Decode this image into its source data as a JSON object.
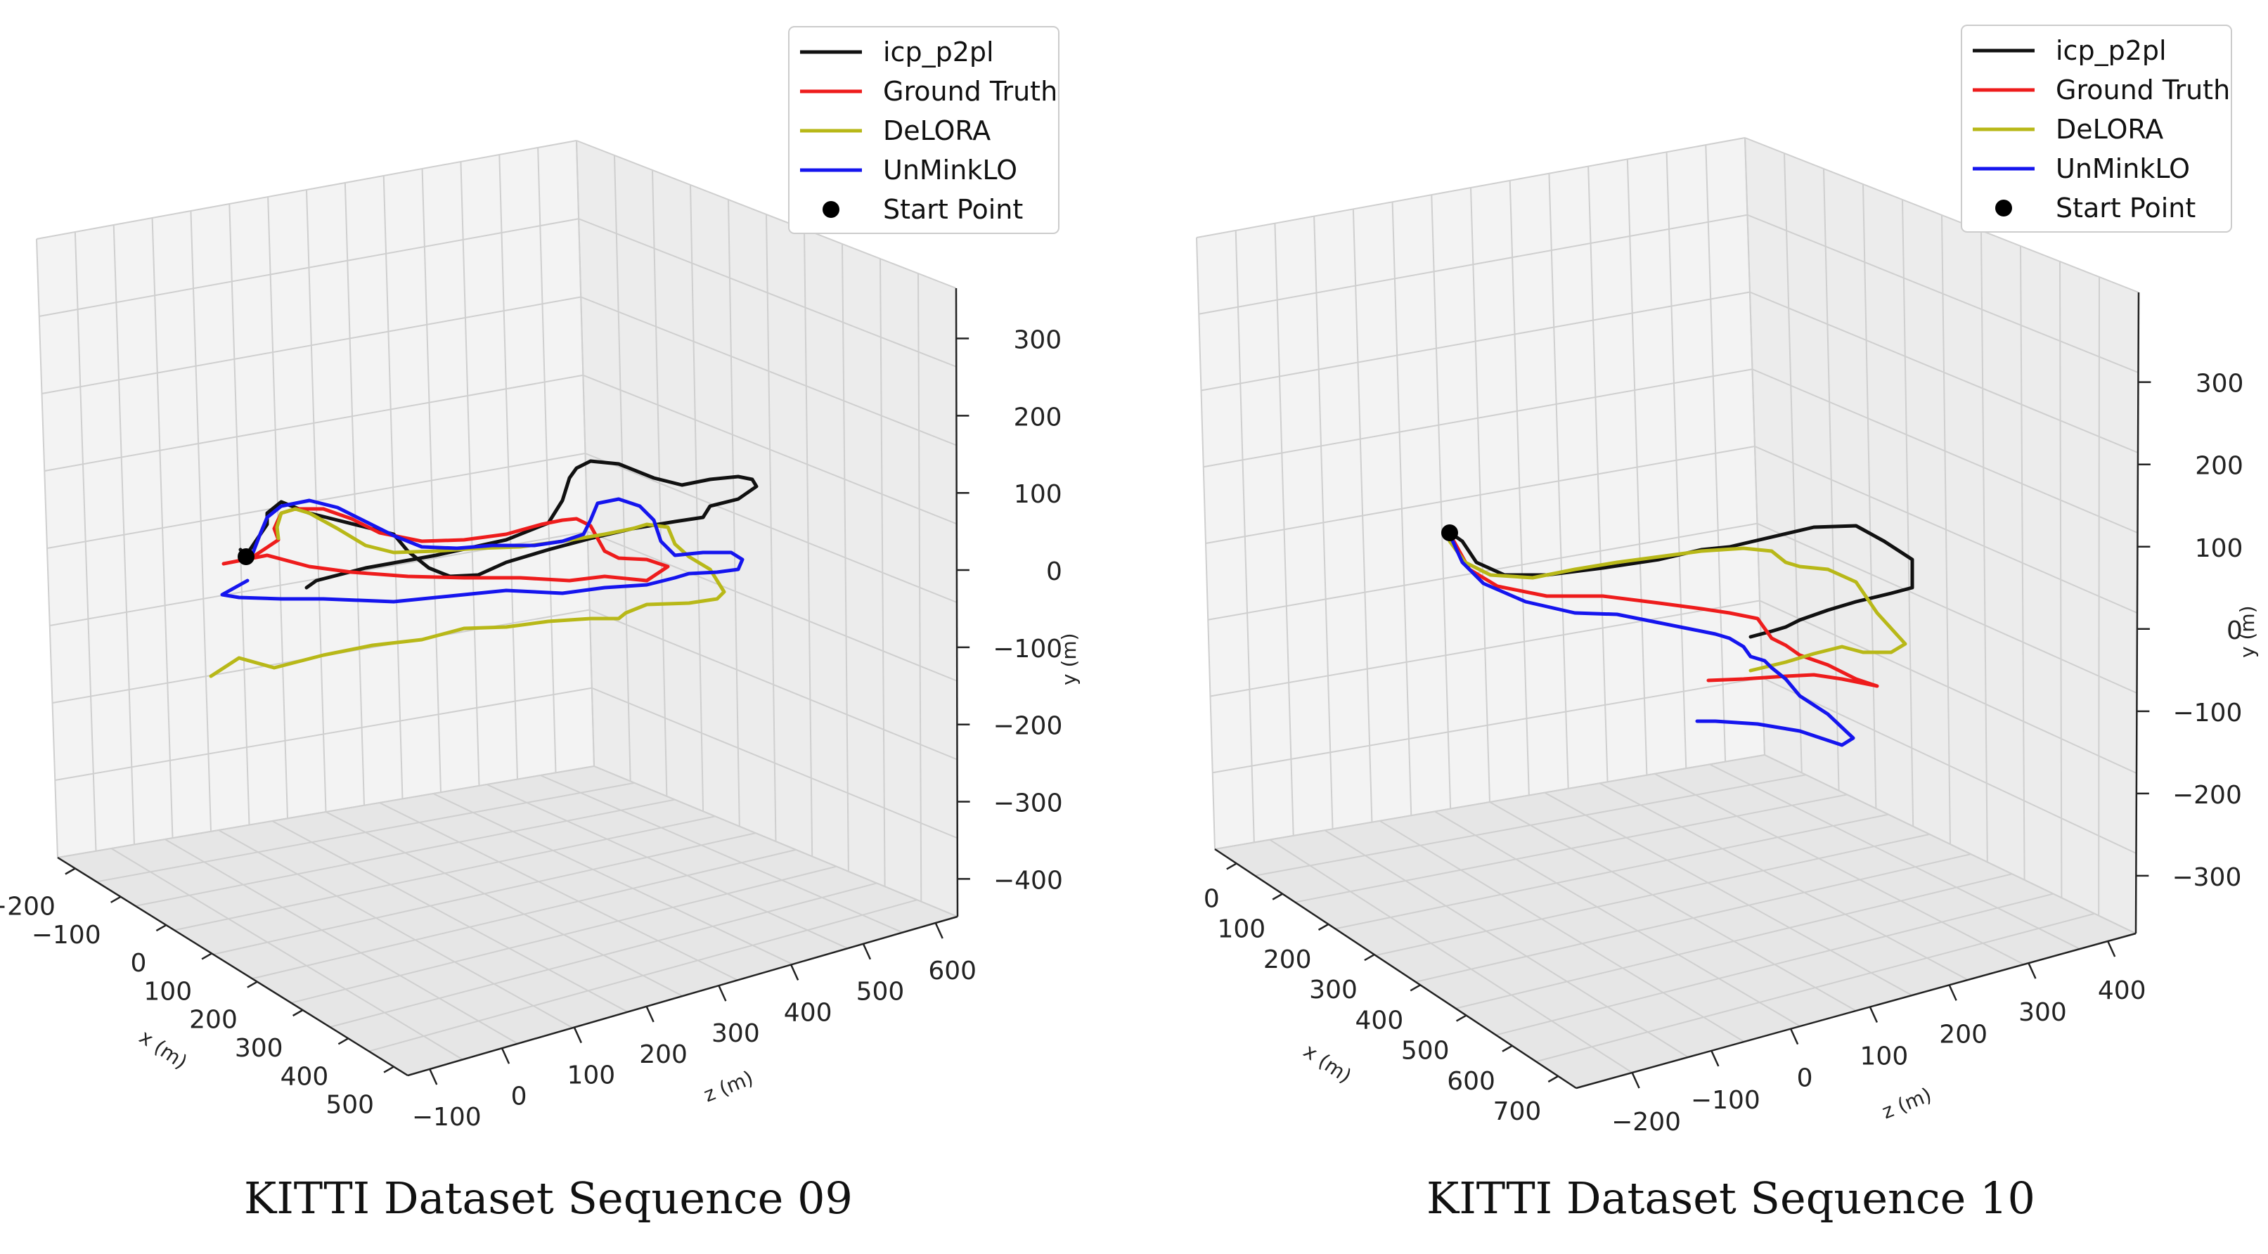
{
  "chart_data": [
    {
      "type": "line3d",
      "title": "KITTI Dataset Sequence 09",
      "xlabel": "x (m)",
      "ylabel": "y (m)",
      "zlabel": "z (m)",
      "x_ticks": [
        "−200",
        "−100",
        "0",
        "100",
        "200",
        "300",
        "400",
        "500"
      ],
      "z_ticks": [
        "−100",
        "0",
        "100",
        "200",
        "300",
        "400",
        "500",
        "600"
      ],
      "y_ticks": [
        "300",
        "200",
        "100",
        "0",
        "−100",
        "−200",
        "−300",
        "−400"
      ],
      "legend": {
        "position": "top-right",
        "entries": [
          {
            "label": "icp_p2pl",
            "color": "#111111",
            "kind": "line"
          },
          {
            "label": "Ground Truth",
            "color": "#ee1c1c",
            "kind": "line"
          },
          {
            "label": "DeLORA",
            "color": "#b8b818",
            "kind": "line"
          },
          {
            "label": "UnMinkLO",
            "color": "#1515ee",
            "kind": "line"
          },
          {
            "label": "Start Point",
            "color": "#000000",
            "kind": "marker"
          }
        ]
      },
      "series": [
        {
          "name": "icp_p2pl",
          "color": "#111111"
        },
        {
          "name": "Ground Truth",
          "color": "#ee1c1c"
        },
        {
          "name": "DeLORA",
          "color": "#b8b818"
        },
        {
          "name": "UnMinkLO",
          "color": "#1515ee"
        }
      ]
    },
    {
      "type": "line3d",
      "title": "KITTI Dataset Sequence 10",
      "xlabel": "x (m)",
      "ylabel": "y (m)",
      "zlabel": "z (m)",
      "x_ticks": [
        "0",
        "100",
        "200",
        "300",
        "400",
        "500",
        "600",
        "700"
      ],
      "z_ticks": [
        "−200",
        "−100",
        "0",
        "100",
        "200",
        "300",
        "400"
      ],
      "y_ticks": [
        "300",
        "200",
        "100",
        "0",
        "−100",
        "−200",
        "−300"
      ],
      "legend": {
        "position": "top-right",
        "entries": [
          {
            "label": "icp_p2pl",
            "color": "#111111",
            "kind": "line"
          },
          {
            "label": "Ground Truth",
            "color": "#ee1c1c",
            "kind": "line"
          },
          {
            "label": "DeLORA",
            "color": "#b8b818",
            "kind": "line"
          },
          {
            "label": "UnMinkLO",
            "color": "#1515ee",
            "kind": "line"
          },
          {
            "label": "Start Point",
            "color": "#000000",
            "kind": "marker"
          }
        ]
      },
      "series": [
        {
          "name": "icp_p2pl",
          "color": "#111111"
        },
        {
          "name": "Ground Truth",
          "color": "#ee1c1c"
        },
        {
          "name": "DeLORA",
          "color": "#b8b818"
        },
        {
          "name": "UnMinkLO",
          "color": "#1515ee"
        }
      ]
    }
  ]
}
